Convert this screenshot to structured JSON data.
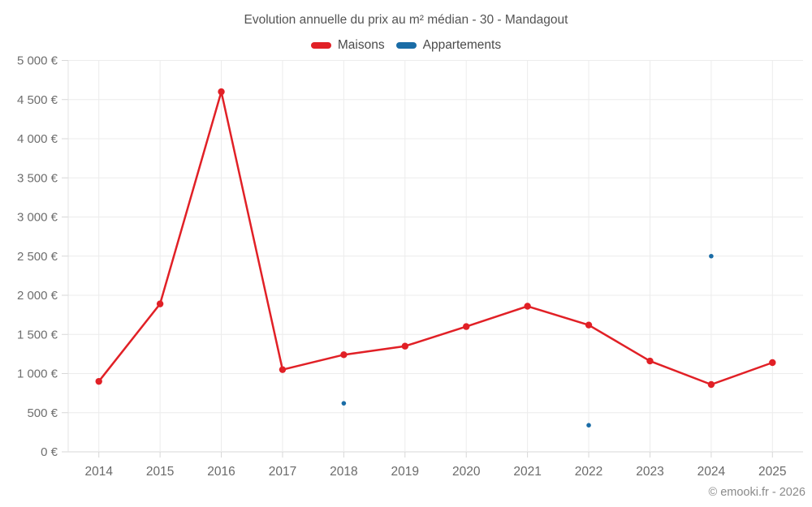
{
  "footer": {
    "credit": "© emooki.fr - 2026"
  },
  "chart_data": {
    "type": "line",
    "title": "Evolution annuelle du prix au m² médian - 30 - Mandagout",
    "categories": [
      "2014",
      "2015",
      "2016",
      "2017",
      "2018",
      "2019",
      "2020",
      "2021",
      "2022",
      "2023",
      "2024",
      "2025"
    ],
    "series": [
      {
        "name": "Maisons",
        "color": "#e12026",
        "draw_line": true,
        "line_width": 2.5,
        "marker_radius": 4.2,
        "values": [
          900,
          1890,
          4600,
          1050,
          1240,
          1350,
          1600,
          1860,
          1620,
          1160,
          860,
          1140
        ]
      },
      {
        "name": "Appartements",
        "color": "#1a6ca6",
        "draw_line": false,
        "marker_radius": 2.8,
        "values": [
          null,
          null,
          null,
          null,
          620,
          null,
          null,
          null,
          340,
          null,
          2500,
          null
        ]
      }
    ],
    "xlabel": "",
    "ylabel": "",
    "ylim": [
      0,
      5000
    ],
    "y_tick_interval": 500,
    "y_tick_labels": [
      "0 €",
      "500 €",
      "1 000 €",
      "1 500 €",
      "2 000 €",
      "2 500 €",
      "3 000 €",
      "3 500 €",
      "4 000 €",
      "4 500 €",
      "5 000 €"
    ],
    "grid": true,
    "legend_position": "top"
  }
}
